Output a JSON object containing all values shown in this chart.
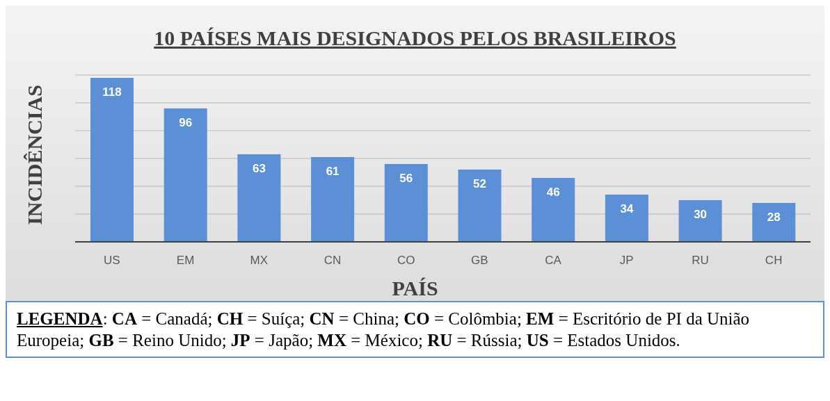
{
  "chart_data": {
    "type": "bar",
    "title": "10 PAÍSES MAIS DESIGNADOS PELOS  BRASILEIROS",
    "xlabel": "PAÍS",
    "ylabel": "INCIDÊNCIAS",
    "categories": [
      "US",
      "EM",
      "MX",
      "CN",
      "CO",
      "GB",
      "CA",
      "JP",
      "RU",
      "CH"
    ],
    "values": [
      118,
      96,
      63,
      61,
      56,
      52,
      46,
      34,
      30,
      28
    ],
    "color": "#5b8fd6",
    "tick_labels": "x",
    "grid": "y",
    "data_labels": true,
    "annotations": [
      "LEGENDA: CA = Canadá; CH = Suíça; CN = China; CO = Colômbia; EM = Escritório de PI da União Europeia; GB = Reino Unido; JP = Japão; MX = México; RU = Rússia; US = Estados Unidos."
    ]
  }
}
